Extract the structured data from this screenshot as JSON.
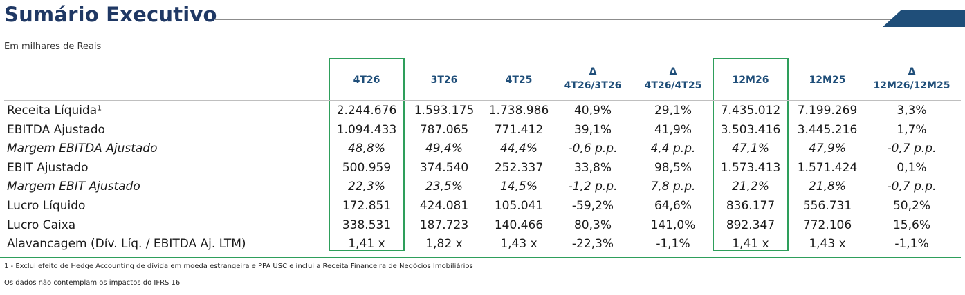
{
  "header": {
    "title": "Sumário Executivo",
    "subtitle": "Em milhares de Reais"
  },
  "table": {
    "columns": [
      {
        "lines": [
          "4T26"
        ],
        "highlighted": true
      },
      {
        "lines": [
          "3T26"
        ],
        "highlighted": false
      },
      {
        "lines": [
          "4T25"
        ],
        "highlighted": false
      },
      {
        "lines": [
          "Δ",
          "4T26/3T26"
        ],
        "highlighted": false
      },
      {
        "lines": [
          "Δ",
          "4T26/4T25"
        ],
        "highlighted": false
      },
      {
        "lines": [
          "12M26"
        ],
        "highlighted": true
      },
      {
        "lines": [
          "12M25"
        ],
        "highlighted": false
      },
      {
        "lines": [
          "Δ",
          "12M26/12M25"
        ],
        "highlighted": false
      }
    ],
    "rows": [
      {
        "label": "Receita Líquida¹",
        "italic": false,
        "values": [
          "2.244.676",
          "1.593.175",
          "1.738.986",
          "40,9%",
          "29,1%",
          "7.435.012",
          "7.199.269",
          "3,3%"
        ]
      },
      {
        "label": "EBITDA Ajustado",
        "italic": false,
        "values": [
          "1.094.433",
          "787.065",
          "771.412",
          "39,1%",
          "41,9%",
          "3.503.416",
          "3.445.216",
          "1,7%"
        ]
      },
      {
        "label": "Margem EBITDA Ajustado",
        "italic": true,
        "values": [
          "48,8%",
          "49,4%",
          "44,4%",
          "-0,6 p.p.",
          "4,4 p.p.",
          "47,1%",
          "47,9%",
          "-0,7 p.p."
        ]
      },
      {
        "label": "EBIT Ajustado",
        "italic": false,
        "values": [
          "500.959",
          "374.540",
          "252.337",
          "33,8%",
          "98,5%",
          "1.573.413",
          "1.571.424",
          "0,1%"
        ]
      },
      {
        "label": "Margem EBIT Ajustado",
        "italic": true,
        "values": [
          "22,3%",
          "23,5%",
          "14,5%",
          "-1,2 p.p.",
          "7,8 p.p.",
          "21,2%",
          "21,8%",
          "-0,7 p.p."
        ]
      },
      {
        "label": "Lucro Líquido",
        "italic": false,
        "values": [
          "172.851",
          "424.081",
          "105.041",
          "-59,2%",
          "64,6%",
          "836.177",
          "556.731",
          "50,2%"
        ]
      },
      {
        "label": "Lucro Caixa",
        "italic": false,
        "values": [
          "338.531",
          "187.723",
          "140.466",
          "80,3%",
          "141,0%",
          "892.347",
          "772.106",
          "15,6%"
        ]
      },
      {
        "label": "Alavancagem (Dív. Líq. / EBITDA Aj. LTM)",
        "italic": false,
        "values": [
          "1,41 x",
          "1,82 x",
          "1,43 x",
          "-22,3%",
          "-1,1%",
          "1,41 x",
          "1,43 x",
          "-1,1%"
        ]
      }
    ]
  },
  "footnotes": [
    "1 - Exclui efeito de Hedge Accounting de dívida em moeda estrangeira e PPA USC e inclui a Receita Financeira de Negócios Imobiliários",
    "Os dados não contemplam os impactos do IFRS 16"
  ],
  "colors": {
    "title": "#1f3864",
    "header_text": "#1f4e79",
    "highlight_border": "#2e9e5b",
    "corner_accent": "#1f4e79"
  }
}
